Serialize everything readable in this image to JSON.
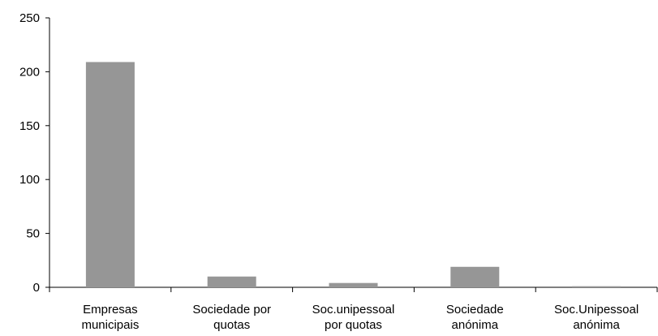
{
  "chart_data": {
    "type": "bar",
    "categories": [
      [
        "Empresas",
        "municipais"
      ],
      [
        "Sociedade por",
        "quotas"
      ],
      [
        "Soc.unipessoal",
        "por quotas"
      ],
      [
        "Sociedade",
        "anónima"
      ],
      [
        "Soc.Unipessoal",
        "anónima"
      ]
    ],
    "values": [
      209,
      10,
      4,
      19,
      1
    ],
    "ylim": [
      0,
      250
    ],
    "yticks": [
      0,
      50,
      100,
      150,
      200,
      250
    ],
    "grid": false,
    "legend": "none",
    "colors": {
      "bar": "#969696",
      "axis": "#000000"
    }
  }
}
